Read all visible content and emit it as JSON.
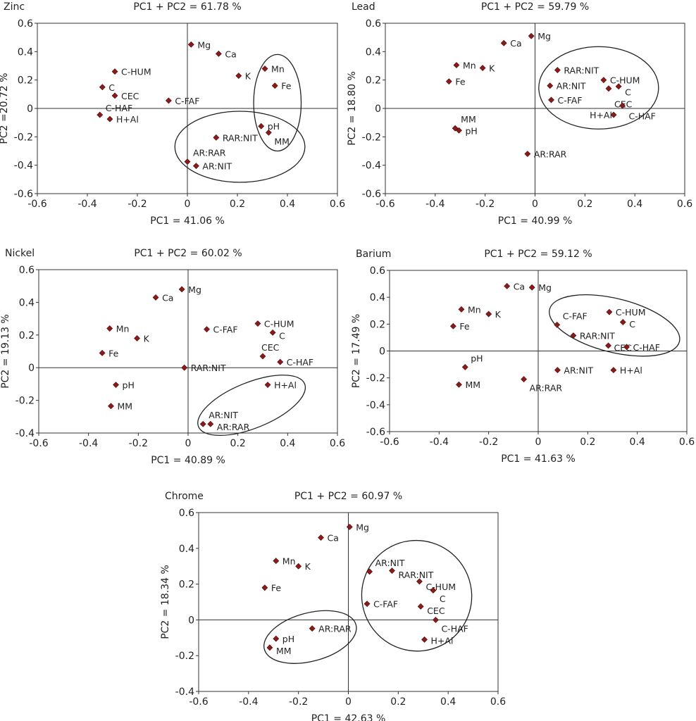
{
  "marker_color": "#8b1a1a",
  "chart_data": [
    {
      "type": "scatter",
      "name": "Zinc",
      "title": "PC1 + PC2 = 61.78 %",
      "xlabel": "PC1 = 41.06 %",
      "ylabel": "PC2 =20.72  %",
      "xlim": [
        -0.6,
        0.6
      ],
      "ylim": [
        -0.6,
        0.6
      ],
      "grid": false,
      "points": [
        {
          "label": "Mg",
          "x": 0.015,
          "y": 0.45
        },
        {
          "label": "Ca",
          "x": 0.125,
          "y": 0.385
        },
        {
          "label": "K",
          "x": 0.205,
          "y": 0.23
        },
        {
          "label": "Mn",
          "x": 0.31,
          "y": 0.28
        },
        {
          "label": "Fe",
          "x": 0.35,
          "y": 0.16
        },
        {
          "label": "C-HUM",
          "x": -0.29,
          "y": 0.26
        },
        {
          "label": "C",
          "x": -0.34,
          "y": 0.15
        },
        {
          "label": "CEC",
          "x": -0.29,
          "y": 0.09
        },
        {
          "label": "C-FAF",
          "x": -0.075,
          "y": 0.055
        },
        {
          "label": "C-HAF",
          "x": -0.35,
          "y": -0.045,
          "label_pos": "above-right"
        },
        {
          "label": "H+Al",
          "x": -0.31,
          "y": -0.075
        },
        {
          "label": "pH",
          "x": 0.295,
          "y": -0.125
        },
        {
          "label": "MM",
          "x": 0.325,
          "y": -0.17,
          "label_pos": "below-right"
        },
        {
          "label": "RAR:NIT",
          "x": 0.115,
          "y": -0.205
        },
        {
          "label": "AR:RAR",
          "x": 0.0,
          "y": -0.375,
          "label_pos": "above-right"
        },
        {
          "label": "AR:NIT",
          "x": 0.035,
          "y": -0.405
        }
      ],
      "ellipses": [
        {
          "cx": 0.36,
          "cy": 0.04,
          "rx": 0.095,
          "ry": 0.34,
          "angle": 0
        },
        {
          "cx": 0.21,
          "cy": -0.27,
          "rx": 0.26,
          "ry": 0.25,
          "angle": 0
        }
      ]
    },
    {
      "type": "scatter",
      "name": "Lead",
      "title": "PC1 + PC2 = 59.79 %",
      "xlabel": "PC1 = 40.99 %",
      "ylabel": "PC2 = 18.80  %",
      "xlim": [
        -0.6,
        0.6
      ],
      "ylim": [
        -0.6,
        0.6
      ],
      "grid": false,
      "points": [
        {
          "label": "Mg",
          "x": -0.015,
          "y": 0.51
        },
        {
          "label": "Ca",
          "x": -0.125,
          "y": 0.46
        },
        {
          "label": "Mn",
          "x": -0.315,
          "y": 0.305
        },
        {
          "label": "K",
          "x": -0.21,
          "y": 0.285
        },
        {
          "label": "Fe",
          "x": -0.345,
          "y": 0.19
        },
        {
          "label": "RAR:NIT",
          "x": 0.09,
          "y": 0.27
        },
        {
          "label": "AR:NIT",
          "x": 0.06,
          "y": 0.16
        },
        {
          "label": "C-FAF",
          "x": 0.065,
          "y": 0.06
        },
        {
          "label": "C-HUM",
          "x": 0.275,
          "y": 0.2
        },
        {
          "label": "C",
          "x": 0.335,
          "y": 0.155
        },
        {
          "label": "CEC",
          "x": 0.295,
          "y": 0.14,
          "label_pos": "below-right"
        },
        {
          "label": "C-HAF",
          "x": 0.35,
          "y": 0.02
        },
        {
          "label": "H+Al",
          "x": 0.315,
          "y": -0.045
        },
        {
          "label": "MM",
          "x": -0.32,
          "y": -0.14,
          "label_pos": "above-right"
        },
        {
          "label": "pH",
          "x": -0.305,
          "y": -0.155
        },
        {
          "label": "AR:RAR",
          "x": -0.03,
          "y": -0.32
        }
      ],
      "ellipses": [
        {
          "cx": 0.255,
          "cy": 0.145,
          "rx": 0.24,
          "ry": 0.29,
          "angle": 0
        }
      ]
    },
    {
      "type": "scatter",
      "name": "Nickel",
      "title": "PC1 + PC2 = 60.02 %",
      "xlabel": "PC1 = 40.89 %",
      "ylabel": "PC2 = 19.13  %",
      "xlim": [
        -0.6,
        0.6
      ],
      "ylim": [
        -0.4,
        0.6
      ],
      "grid": false,
      "points": [
        {
          "label": "Mg",
          "x": -0.025,
          "y": 0.48
        },
        {
          "label": "Ca",
          "x": -0.13,
          "y": 0.43
        },
        {
          "label": "Mn",
          "x": -0.315,
          "y": 0.24
        },
        {
          "label": "K",
          "x": -0.205,
          "y": 0.18
        },
        {
          "label": "Fe",
          "x": -0.345,
          "y": 0.09
        },
        {
          "label": "C-FAF",
          "x": 0.075,
          "y": 0.235
        },
        {
          "label": "C-HUM",
          "x": 0.28,
          "y": 0.27
        },
        {
          "label": "C",
          "x": 0.34,
          "y": 0.215
        },
        {
          "label": "CEC",
          "x": 0.3,
          "y": 0.07,
          "label_pos": "above-left"
        },
        {
          "label": "C-HAF",
          "x": 0.37,
          "y": 0.035
        },
        {
          "label": "RAR:NIT",
          "x": -0.015,
          "y": 0.0
        },
        {
          "label": "H+Al",
          "x": 0.32,
          "y": -0.105
        },
        {
          "label": "pH",
          "x": -0.29,
          "y": -0.105
        },
        {
          "label": "MM",
          "x": -0.31,
          "y": -0.235
        },
        {
          "label": "AR:NIT",
          "x": 0.06,
          "y": -0.345,
          "label_pos": "above-right"
        },
        {
          "label": "AR:RAR",
          "x": 0.09,
          "y": -0.345
        }
      ],
      "ellipses": [
        {
          "cx": 0.255,
          "cy": -0.23,
          "rx": 0.23,
          "ry": 0.14,
          "angle": -22
        }
      ]
    },
    {
      "type": "scatter",
      "name": "Barium",
      "title": "PC1 + PC2 = 59.12 %",
      "xlabel": "PC1 = 41.63 %",
      "ylabel": "PC2 = 17.49  %",
      "xlim": [
        -0.6,
        0.6
      ],
      "ylim": [
        -0.6,
        0.6
      ],
      "grid": false,
      "points": [
        {
          "label": "Ca",
          "x": -0.126,
          "y": 0.483
        },
        {
          "label": "Mg",
          "x": -0.025,
          "y": 0.473
        },
        {
          "label": "Mn",
          "x": -0.31,
          "y": 0.31
        },
        {
          "label": "K",
          "x": -0.2,
          "y": 0.275
        },
        {
          "label": "Fe",
          "x": -0.343,
          "y": 0.185
        },
        {
          "label": "C-HUM",
          "x": 0.287,
          "y": 0.29
        },
        {
          "label": "C",
          "x": 0.342,
          "y": 0.215
        },
        {
          "label": "C-FAF",
          "x": 0.076,
          "y": 0.195,
          "label_pos": "above-right"
        },
        {
          "label": "RAR:NIT",
          "x": 0.142,
          "y": 0.115
        },
        {
          "label": "CEC",
          "x": 0.283,
          "y": 0.04,
          "label_pos": "above-right"
        },
        {
          "label": "C-HAF",
          "x": 0.357,
          "y": 0.03
        },
        {
          "label": "pH",
          "x": -0.295,
          "y": -0.12,
          "label_pos": "above-right"
        },
        {
          "label": "MM",
          "x": -0.32,
          "y": -0.25
        },
        {
          "label": "AR:NIT",
          "x": 0.078,
          "y": -0.142
        },
        {
          "label": "H+Al",
          "x": 0.304,
          "y": -0.142
        },
        {
          "label": "AR:RAR",
          "x": -0.058,
          "y": -0.21,
          "label_pos": "below-right"
        }
      ],
      "ellipses": [
        {
          "cx": 0.308,
          "cy": 0.19,
          "rx": 0.27,
          "ry": 0.2,
          "angle": 14
        }
      ]
    },
    {
      "type": "scatter",
      "name": "Chrome",
      "title": "PC1 + PC2 = 60.97 %",
      "xlabel": "PC1 = 42.63 %",
      "ylabel": "PC2 = 18.34  %",
      "xlim": [
        -0.6,
        0.6
      ],
      "ylim": [
        -0.4,
        0.6
      ],
      "grid": false,
      "points": [
        {
          "label": "Mg",
          "x": 0.005,
          "y": 0.52
        },
        {
          "label": "Ca",
          "x": -0.11,
          "y": 0.46
        },
        {
          "label": "Mn",
          "x": -0.29,
          "y": 0.33
        },
        {
          "label": "K",
          "x": -0.2,
          "y": 0.3
        },
        {
          "label": "Fe",
          "x": -0.335,
          "y": 0.18
        },
        {
          "label": "AR:NIT",
          "x": 0.085,
          "y": 0.27,
          "label_pos": "above-right"
        },
        {
          "label": "RAR:NIT",
          "x": 0.175,
          "y": 0.275
        },
        {
          "label": "C-HUM",
          "x": 0.285,
          "y": 0.215
        },
        {
          "label": "C",
          "x": 0.34,
          "y": 0.165
        },
        {
          "label": "C-FAF",
          "x": 0.075,
          "y": 0.09
        },
        {
          "label": "CEC",
          "x": 0.29,
          "y": 0.075
        },
        {
          "label": "C-HAF",
          "x": 0.35,
          "y": 0.0,
          "label_pos": "below-right"
        },
        {
          "label": "H+Al",
          "x": 0.305,
          "y": -0.11
        },
        {
          "label": "AR:RAR",
          "x": -0.145,
          "y": -0.048
        },
        {
          "label": "pH",
          "x": -0.29,
          "y": -0.105
        },
        {
          "label": "MM",
          "x": -0.315,
          "y": -0.155
        }
      ],
      "ellipses": [
        {
          "cx": -0.153,
          "cy": -0.096,
          "rx": 0.19,
          "ry": 0.135,
          "angle": -15
        },
        {
          "cx": 0.274,
          "cy": 0.135,
          "rx": 0.22,
          "ry": 0.31,
          "angle": -28
        }
      ]
    }
  ]
}
